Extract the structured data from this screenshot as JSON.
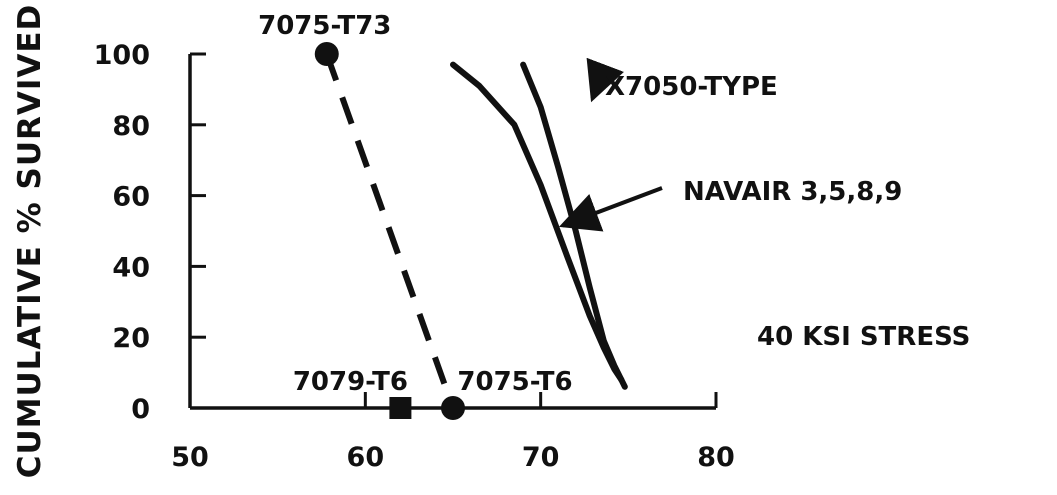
{
  "chart_data": {
    "type": "line",
    "title": "",
    "xlabel": "",
    "ylabel": "CUMULATIVE % SURVIVED",
    "xlim": [
      50,
      80
    ],
    "ylim": [
      0,
      100
    ],
    "x_ticks": [
      50,
      60,
      70,
      80
    ],
    "y_ticks": [
      0,
      20,
      40,
      60,
      80,
      100
    ],
    "x_tick_labels": [
      "50",
      "60",
      "70",
      "80"
    ],
    "y_tick_labels": [
      "0",
      "20",
      "40",
      "60",
      "80",
      "100"
    ],
    "grid": false,
    "legend": "none",
    "series": [
      {
        "name": "7075-T73",
        "style": "dashed",
        "x": [
          57.8,
          65.0
        ],
        "y": [
          100,
          0
        ]
      },
      {
        "name": "NAVAIR 3,5,8,9",
        "style": "solid",
        "x": [
          65.0,
          66.5,
          68.5,
          70.0,
          71.5,
          72.8,
          73.6,
          74.2,
          74.6
        ],
        "y": [
          97,
          91,
          80,
          63,
          43,
          26,
          17,
          11,
          8
        ]
      },
      {
        "name": "X7050-TYPE",
        "style": "solid",
        "x": [
          69.0,
          70.0,
          71.0,
          72.0,
          72.8,
          73.6,
          74.2,
          74.8
        ],
        "y": [
          97,
          85,
          68,
          50,
          34,
          19,
          12,
          6
        ]
      }
    ],
    "markers": [
      {
        "series": "7075-T73",
        "label": "7075-T73",
        "shape": "circle",
        "x": 57.8,
        "y": 100
      },
      {
        "series": "7075-T6",
        "label": "7075-T6",
        "shape": "circle",
        "x": 65.0,
        "y": 0
      },
      {
        "series": "7079-T6",
        "label": "7079-T6",
        "shape": "square",
        "x": 62.0,
        "y": 0
      }
    ],
    "annotations": [
      {
        "text": "X7050-TYPE",
        "kind": "callout"
      },
      {
        "text": "NAVAIR 3,5,8,9",
        "kind": "callout"
      },
      {
        "text": "40 KSI STRESS",
        "kind": "note"
      }
    ]
  },
  "colors": {
    "ink": "#111111",
    "background": "#ffffff"
  }
}
